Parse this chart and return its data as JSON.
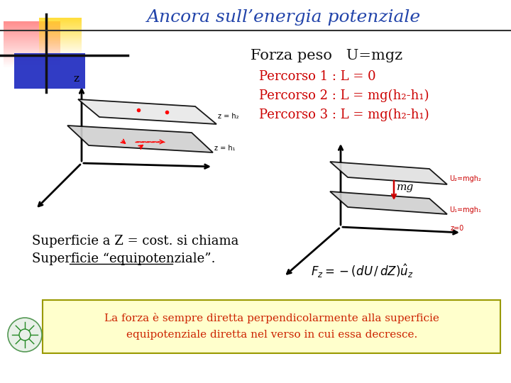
{
  "title": "Ancora sull’energia potenziale",
  "title_color": "#2244aa",
  "title_fontsize": 18,
  "bg_color": "#ffffff",
  "forza_peso_text": "Forza peso   U=mgz",
  "percorso1": "Percorso 1 : L = 0",
  "percorso2": "Percorso 2 : L = mg(h₂-h₁)",
  "percorso3": "Percorso 3 : L = mg(h₂-h₁)",
  "red_color": "#cc0000",
  "superficie1": "Superficie a Z = cost. si chiama",
  "superficie2": "Superficie “equipotenziale”.",
  "bottom_text_line1": "La forza è sempre diretta perpendicolarmente alla superficie",
  "bottom_text_line2": "equipotenziale diretta nel verso in cui essa decresce.",
  "bottom_box_bg": "#ffffcc",
  "bottom_box_border": "#999900",
  "bottom_text_color": "#cc2200"
}
